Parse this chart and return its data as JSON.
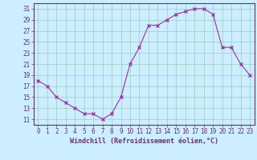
{
  "x": [
    0,
    1,
    2,
    3,
    4,
    5,
    6,
    7,
    8,
    9,
    10,
    11,
    12,
    13,
    14,
    15,
    16,
    17,
    18,
    19,
    20,
    21,
    22,
    23
  ],
  "y": [
    18,
    17,
    15,
    14,
    13,
    12,
    12,
    11,
    12,
    15,
    21,
    24,
    28,
    28,
    29,
    30,
    30.5,
    31,
    31,
    30,
    24,
    24,
    21,
    19
  ],
  "line_color": "#993399",
  "marker": "x",
  "bg_color": "#cceeff",
  "grid_color": "#99ccbb",
  "xlabel": "Windchill (Refroidissement éolien,°C)",
  "xlabel_color": "#663366",
  "tick_color": "#663366",
  "axis_line_color": "#663366",
  "ylim": [
    10,
    32
  ],
  "yticks": [
    11,
    13,
    15,
    17,
    19,
    21,
    23,
    25,
    27,
    29,
    31
  ],
  "xticks": [
    0,
    1,
    2,
    3,
    4,
    5,
    6,
    7,
    8,
    9,
    10,
    11,
    12,
    13,
    14,
    15,
    16,
    17,
    18,
    19,
    20,
    21,
    22,
    23
  ],
  "axis_fontsize": 5.5,
  "label_fontsize": 6.0
}
